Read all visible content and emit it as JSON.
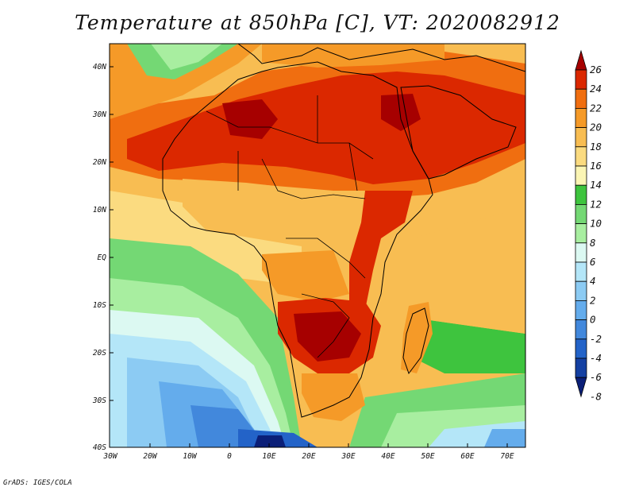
{
  "title": "Temperature at 850hPa [C], VT: 2020082912",
  "credit": "GrADS: IGES/COLA",
  "map": {
    "lat_labels": [
      "40N",
      "30N",
      "20N",
      "10N",
      "EQ",
      "10S",
      "20S",
      "30S",
      "40S"
    ],
    "lon_labels": [
      "30W",
      "20W",
      "10W",
      "0",
      "10E",
      "20E",
      "30E",
      "40E",
      "50E",
      "60E",
      "70E"
    ],
    "region": {
      "lat_range": [
        -40,
        45
      ],
      "lon_range": [
        -30,
        75
      ]
    }
  },
  "colorbar": {
    "labels": [
      "26",
      "24",
      "22",
      "20",
      "18",
      "16",
      "14",
      "12",
      "10",
      "8",
      "6",
      "4",
      "2",
      "0",
      "-2",
      "-4",
      "-6",
      "-8"
    ],
    "colors": [
      "#a60000",
      "#db2800",
      "#f06e10",
      "#f59a28",
      "#f8bd52",
      "#fbdb80",
      "#fbf5b4",
      "#3ec43e",
      "#74d874",
      "#a8eea0",
      "#dcf9f2",
      "#b4e6f8",
      "#8ccbf3",
      "#64acec",
      "#4288dc",
      "#2363c8",
      "#1440a2",
      "#0b1f78"
    ]
  }
}
